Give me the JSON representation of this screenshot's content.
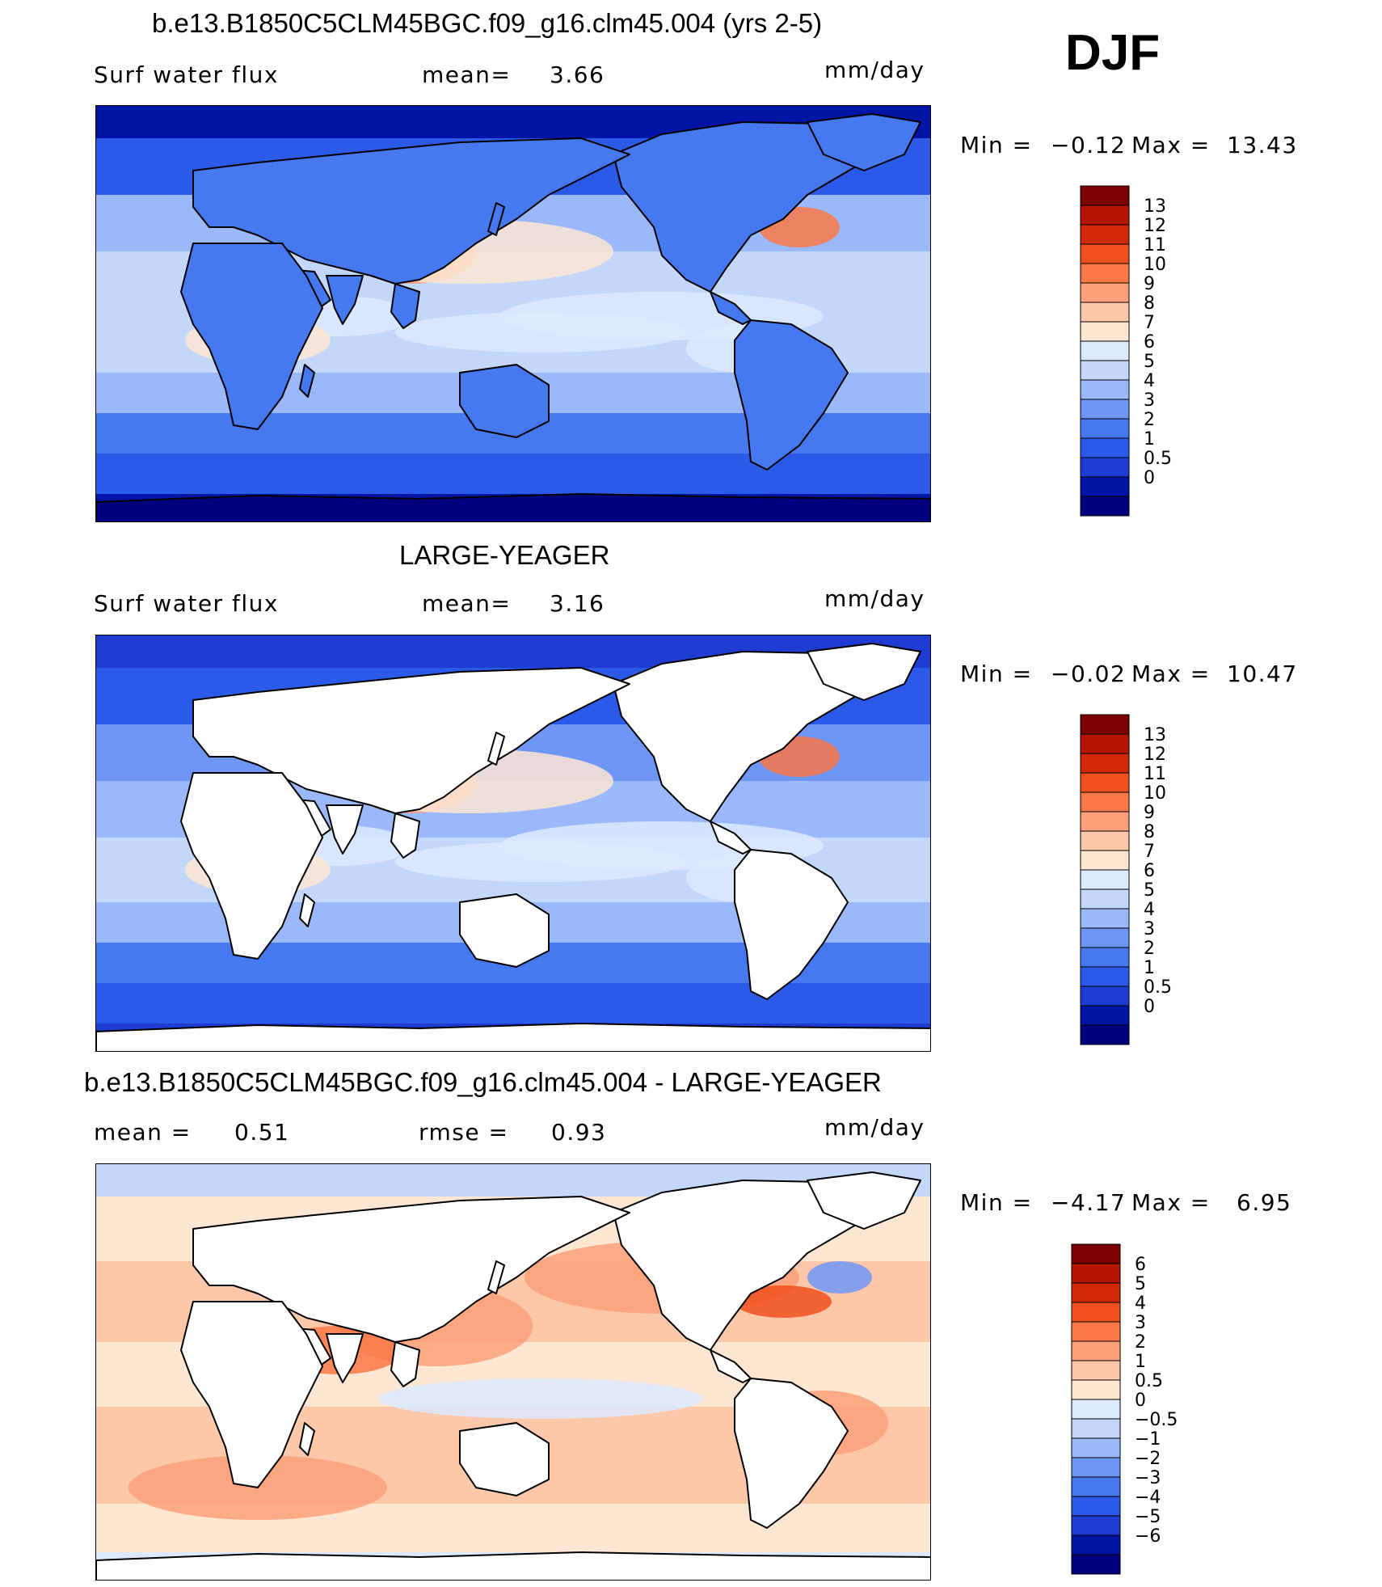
{
  "season": "DJF",
  "colors": {
    "levels_abs": [
      "#00007f",
      "#0014a5",
      "#1e3cd2",
      "#2c5ae8",
      "#4678f0",
      "#6e96f5",
      "#9bb9fa",
      "#c3d7fa",
      "#dceaff",
      "#fde6d2",
      "#fdc8aa",
      "#fca07a",
      "#fa7846",
      "#f0501e",
      "#d2280a",
      "#b41400",
      "#7d0000"
    ],
    "levels_diff": [
      "#00007f",
      "#0014a5",
      "#1e3cd2",
      "#2c5ae8",
      "#4678f0",
      "#6e96f5",
      "#9bb9fa",
      "#c3d7fa",
      "#dceaff",
      "#fde6d2",
      "#fdc8aa",
      "#fca07a",
      "#fa7846",
      "#f0501e",
      "#d2280a",
      "#b41400",
      "#7d0000"
    ],
    "land": "#ffffff",
    "coast": "#000000"
  },
  "panels": [
    {
      "id": "model",
      "title": "b.e13.B1850C5CLM45BGC.f09_g16.clm45.004 (yrs 2-5)",
      "left_label": "Surf water flux",
      "mid_label": "mean=",
      "mid_value": "3.66",
      "units": "mm/day",
      "min_label": "Min =",
      "min_value": "−0.12",
      "max_label": "Max =",
      "max_value": "13.43",
      "land_masked": false,
      "colorbar_labels": [
        "13",
        "12",
        "11",
        "10",
        "9",
        "8",
        "7",
        "6",
        "5",
        "4",
        "3",
        "2",
        "1",
        "0.5",
        "0"
      ]
    },
    {
      "id": "obs",
      "title": "LARGE-YEAGER",
      "left_label": "Surf water flux",
      "mid_label": "mean=",
      "mid_value": "3.16",
      "units": "mm/day",
      "min_label": "Min =",
      "min_value": "−0.02",
      "max_label": "Max =",
      "max_value": "10.47",
      "land_masked": true,
      "colorbar_labels": [
        "13",
        "12",
        "11",
        "10",
        "9",
        "8",
        "7",
        "6",
        "5",
        "4",
        "3",
        "2",
        "1",
        "0.5",
        "0"
      ]
    },
    {
      "id": "diff",
      "title": "b.e13.B1850C5CLM45BGC.f09_g16.clm45.004 - LARGE-YEAGER",
      "left_label": "mean =",
      "left_value": "0.51",
      "mid_label": "rmse =",
      "mid_value": "0.93",
      "units": "mm/day",
      "min_label": "Min =",
      "min_value": "−4.17",
      "max_label": "Max =",
      "max_value": "6.95",
      "land_masked": true,
      "colorbar_labels": [
        "6",
        "5",
        "4",
        "3",
        "2",
        "1",
        "0.5",
        "0",
        "−0.5",
        "−1",
        "−2",
        "−3",
        "−4",
        "−5",
        "−6"
      ]
    }
  ]
}
